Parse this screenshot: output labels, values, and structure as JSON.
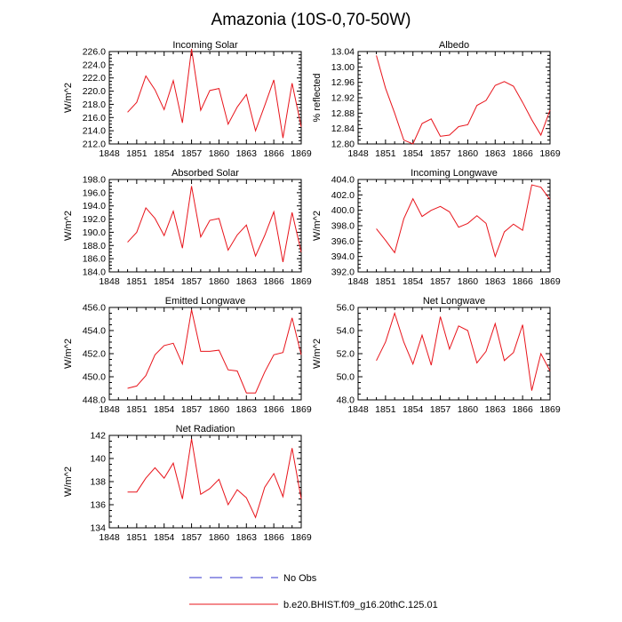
{
  "figure": {
    "title": "Amazonia (10S-0,70-50W)",
    "legend": [
      {
        "label": "No Obs",
        "color": "#3333cc",
        "dashed": true
      },
      {
        "label": "b.e20.BHIST.f09_g16.20thC.125.01",
        "color": "#e8141b",
        "dashed": false
      }
    ]
  },
  "chart_data": [
    {
      "type": "line",
      "title": "Incoming Solar",
      "xlabel": "",
      "ylabel": "W/m^2",
      "xlim": [
        1848,
        1869
      ],
      "ylim": [
        212,
        226
      ],
      "xticks": [
        "1848",
        "1851",
        "1854",
        "1857",
        "1860",
        "1863",
        "1866",
        "1869"
      ],
      "yticks": [
        "212.0",
        "214.0",
        "216.0",
        "218.0",
        "220.0",
        "222.0",
        "224.0",
        "226.0"
      ],
      "series": [
        {
          "color": "#e8141b",
          "x": [
            1850,
            1851,
            1852,
            1853,
            1854,
            1855,
            1856,
            1857,
            1858,
            1859,
            1860,
            1861,
            1862,
            1863,
            1864,
            1865,
            1866,
            1867,
            1868,
            1869
          ],
          "y": [
            216.8,
            218.3,
            222.3,
            220.2,
            217.2,
            221.6,
            215.2,
            226.4,
            217.1,
            220.1,
            220.4,
            215.0,
            217.6,
            219.5,
            214.0,
            217.8,
            221.7,
            212.9,
            221.2,
            214.6
          ]
        }
      ]
    },
    {
      "type": "line",
      "title": "Albedo",
      "xlabel": "",
      "ylabel": "% reflected",
      "xlim": [
        1848,
        1869
      ],
      "ylim": [
        12.8,
        13.04
      ],
      "xticks": [
        "1848",
        "1851",
        "1854",
        "1857",
        "1860",
        "1863",
        "1866",
        "1869"
      ],
      "yticks": [
        "12.80",
        "12.84",
        "12.88",
        "12.92",
        "12.96",
        "13.00",
        "13.04"
      ],
      "series": [
        {
          "color": "#e8141b",
          "x": [
            1850,
            1851,
            1852,
            1853,
            1854,
            1855,
            1856,
            1857,
            1858,
            1859,
            1860,
            1861,
            1862,
            1863,
            1864,
            1865,
            1866,
            1867,
            1868,
            1869
          ],
          "y": [
            13.03,
            12.945,
            12.88,
            12.81,
            12.8,
            12.853,
            12.865,
            12.82,
            12.823,
            12.845,
            12.85,
            12.9,
            12.913,
            12.952,
            12.962,
            12.95,
            12.908,
            12.863,
            12.823,
            12.888
          ]
        }
      ]
    },
    {
      "type": "line",
      "title": "Absorbed Solar",
      "xlabel": "",
      "ylabel": "W/m^2",
      "xlim": [
        1848,
        1869
      ],
      "ylim": [
        184,
        198
      ],
      "xticks": [
        "1848",
        "1851",
        "1854",
        "1857",
        "1860",
        "1863",
        "1866",
        "1869"
      ],
      "yticks": [
        "184.0",
        "186.0",
        "188.0",
        "190.0",
        "192.0",
        "194.0",
        "196.0",
        "198.0"
      ],
      "series": [
        {
          "color": "#e8141b",
          "x": [
            1850,
            1851,
            1852,
            1853,
            1854,
            1855,
            1856,
            1857,
            1858,
            1859,
            1860,
            1861,
            1862,
            1863,
            1864,
            1865,
            1866,
            1867,
            1868,
            1869
          ],
          "y": [
            188.5,
            190.0,
            193.7,
            192.1,
            189.5,
            193.2,
            187.6,
            197.0,
            189.3,
            191.8,
            192.1,
            187.3,
            189.6,
            191.1,
            186.4,
            189.5,
            193.1,
            185.5,
            193.0,
            187.0
          ]
        }
      ]
    },
    {
      "type": "line",
      "title": "Incoming Longwave",
      "xlabel": "",
      "ylabel": "W/m^2",
      "xlim": [
        1848,
        1869
      ],
      "ylim": [
        392,
        404
      ],
      "xticks": [
        "1848",
        "1851",
        "1854",
        "1857",
        "1860",
        "1863",
        "1866",
        "1869"
      ],
      "yticks": [
        "392.0",
        "394.0",
        "396.0",
        "398.0",
        "400.0",
        "402.0",
        "404.0"
      ],
      "series": [
        {
          "color": "#e8141b",
          "x": [
            1850,
            1851,
            1852,
            1853,
            1854,
            1855,
            1856,
            1857,
            1858,
            1859,
            1860,
            1861,
            1862,
            1863,
            1864,
            1865,
            1866,
            1867,
            1868,
            1869
          ],
          "y": [
            397.6,
            396.1,
            394.5,
            398.9,
            401.5,
            399.2,
            400.0,
            400.5,
            399.8,
            397.8,
            398.3,
            399.3,
            398.3,
            394.0,
            397.2,
            398.2,
            397.4,
            403.3,
            403.0,
            401.4
          ]
        }
      ]
    },
    {
      "type": "line",
      "title": "Emitted Longwave",
      "xlabel": "",
      "ylabel": "W/m^2",
      "xlim": [
        1848,
        1869
      ],
      "ylim": [
        448,
        456
      ],
      "xticks": [
        "1848",
        "1851",
        "1854",
        "1857",
        "1860",
        "1863",
        "1866",
        "1869"
      ],
      "yticks": [
        "448.0",
        "450.0",
        "452.0",
        "454.0",
        "456.0"
      ],
      "series": [
        {
          "color": "#e8141b",
          "x": [
            1850,
            1851,
            1852,
            1853,
            1854,
            1855,
            1856,
            1857,
            1858,
            1859,
            1860,
            1861,
            1862,
            1863,
            1864,
            1865,
            1866,
            1867,
            1868,
            1869
          ],
          "y": [
            449.0,
            449.2,
            450.1,
            451.9,
            452.7,
            452.9,
            451.1,
            455.8,
            452.2,
            452.2,
            452.3,
            450.6,
            450.5,
            448.6,
            448.6,
            450.4,
            451.9,
            452.1,
            455.1,
            451.9
          ]
        }
      ]
    },
    {
      "type": "line",
      "title": "Net Longwave",
      "xlabel": "",
      "ylabel": "W/m^2",
      "xlim": [
        1848,
        1869
      ],
      "ylim": [
        48,
        56
      ],
      "xticks": [
        "1848",
        "1851",
        "1854",
        "1857",
        "1860",
        "1863",
        "1866",
        "1869"
      ],
      "yticks": [
        "48.0",
        "50.0",
        "52.0",
        "54.0",
        "56.0"
      ],
      "series": [
        {
          "color": "#e8141b",
          "x": [
            1850,
            1851,
            1852,
            1853,
            1854,
            1855,
            1856,
            1857,
            1858,
            1859,
            1860,
            1861,
            1862,
            1863,
            1864,
            1865,
            1866,
            1867,
            1868,
            1869
          ],
          "y": [
            51.4,
            53.0,
            55.5,
            53.0,
            51.1,
            53.6,
            51.0,
            55.2,
            52.4,
            54.4,
            54.0,
            51.2,
            52.2,
            54.6,
            51.4,
            52.1,
            54.5,
            48.8,
            52.0,
            50.5
          ]
        }
      ]
    },
    {
      "type": "line",
      "title": "Net Radiation",
      "xlabel": "",
      "ylabel": "W/m^2",
      "xlim": [
        1848,
        1869
      ],
      "ylim": [
        134,
        142
      ],
      "xticks": [
        "1848",
        "1851",
        "1854",
        "1857",
        "1860",
        "1863",
        "1866",
        "1869"
      ],
      "yticks": [
        "134",
        "136",
        "138",
        "140",
        "142"
      ],
      "series": [
        {
          "color": "#e8141b",
          "x": [
            1850,
            1851,
            1852,
            1853,
            1854,
            1855,
            1856,
            1857,
            1858,
            1859,
            1860,
            1861,
            1862,
            1863,
            1864,
            1865,
            1866,
            1867,
            1868,
            1869
          ],
          "y": [
            137.1,
            137.1,
            138.3,
            139.2,
            138.3,
            139.6,
            136.5,
            141.7,
            136.9,
            137.4,
            138.2,
            136.0,
            137.3,
            136.6,
            134.9,
            137.5,
            138.7,
            136.7,
            140.9,
            136.5
          ]
        }
      ]
    }
  ]
}
